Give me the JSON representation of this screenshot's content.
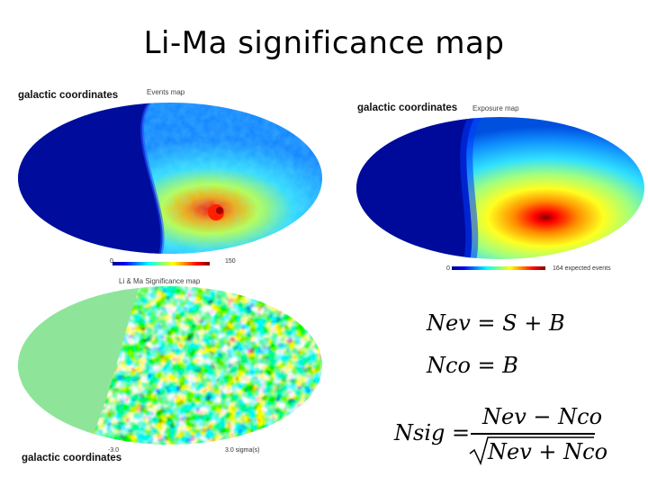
{
  "title": "Li-Ma significance map",
  "events_panel": {
    "coord_label": "galactic coordinates",
    "map_label": "Events map",
    "scale_min": "0",
    "scale_max": "150"
  },
  "exposure_panel": {
    "coord_label": "galactic coordinates",
    "map_label": "Exposure map",
    "scale_min": "0",
    "scale_max": "164 expected events"
  },
  "significance_panel": {
    "coord_label": "galactic coordinates",
    "map_label": "Li & Ma Significance map",
    "scale_min": "-3.0",
    "scale_max": "3.0 sigma(s)"
  },
  "formulas": {
    "nev": "Nev = S + B",
    "nco": "Nco = B",
    "nsig_lhs": "Nsig =",
    "nsig_num": "Nev − Nco",
    "nsig_den": "Nev + Nco"
  },
  "colors": {
    "deep_blue": "#00008f",
    "masked_green": "#8ee59a",
    "hot_red": "#d40000"
  }
}
